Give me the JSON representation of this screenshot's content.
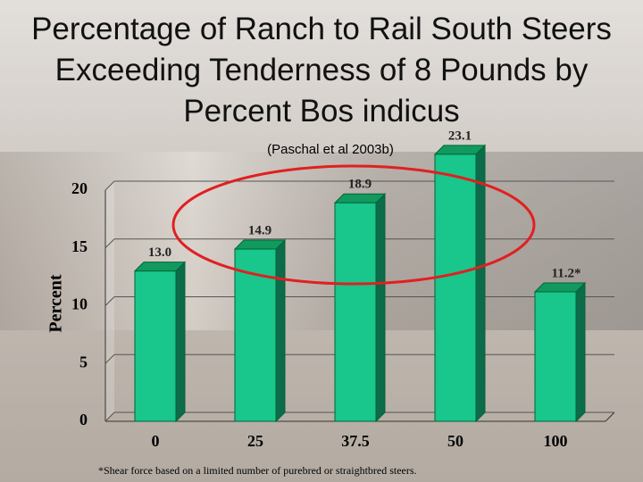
{
  "chart_data": {
    "type": "bar3d",
    "title": "Percentage of Ranch to Rail South Steers Exceeding Tenderness of 8 Pounds by Percent Bos indicus",
    "subtitle": "(Paschal et al 2003b)",
    "y_label": "Percent",
    "footnote": "*Shear force based on a limited number of purebred or straightbred steers.",
    "categories": [
      "0",
      "25",
      "37.5",
      "50",
      "100"
    ],
    "values": [
      13.0,
      14.9,
      18.9,
      23.1,
      11.2
    ],
    "value_labels": [
      "13.0",
      "14.9",
      "18.9",
      "23.1",
      "11.2*"
    ],
    "color": "#19c68c",
    "ylim": [
      0,
      20
    ],
    "yticks": [
      0,
      5,
      10,
      15,
      20
    ],
    "grid": true
  }
}
